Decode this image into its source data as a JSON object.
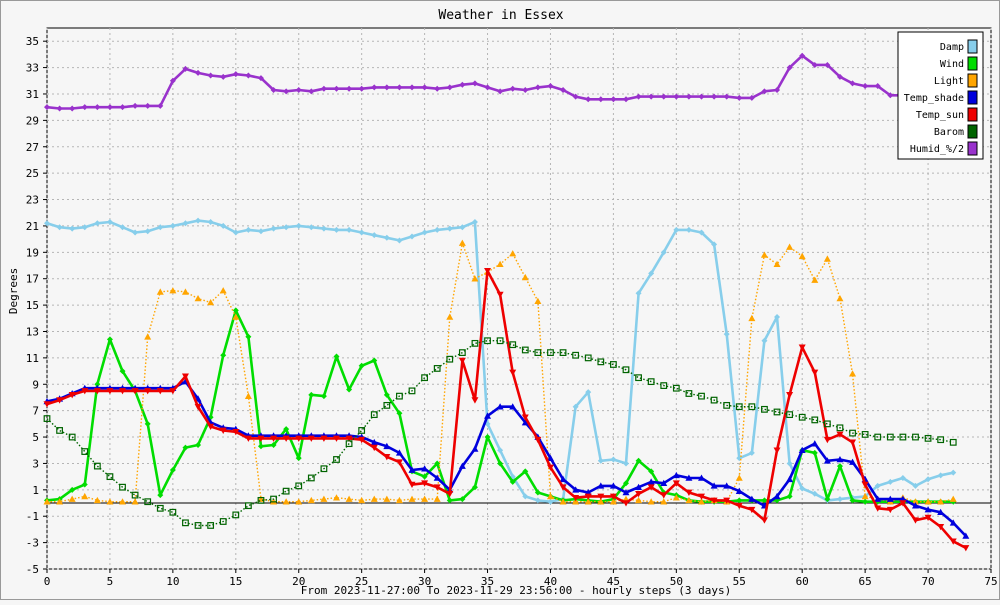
{
  "chart_data": {
    "type": "line",
    "title": "Weather in Essex",
    "ylabel": "Degrees",
    "xlabel": "From 2023-11-27:00 To 2023-11-29 23:56:00 - hourly steps (3 days)",
    "xlim": [
      0,
      75
    ],
    "ylim": [
      -5,
      36
    ],
    "xticks": [
      0,
      5,
      10,
      15,
      20,
      25,
      30,
      35,
      40,
      45,
      50,
      55,
      60,
      65,
      70,
      75
    ],
    "yticks": [
      -5,
      -3,
      -1,
      1,
      3,
      5,
      7,
      9,
      11,
      13,
      15,
      17,
      19,
      21,
      23,
      25,
      27,
      29,
      31,
      33,
      35
    ],
    "grid": true,
    "legend_position": "top-right",
    "series": [
      {
        "name": "Damp",
        "color": "#87ceeb",
        "style": "solid",
        "marker": "diamond",
        "values": [
          21.2,
          20.9,
          20.8,
          20.9,
          21.2,
          21.3,
          20.9,
          20.5,
          20.6,
          20.9,
          21.0,
          21.2,
          21.4,
          21.3,
          21.0,
          20.5,
          20.7,
          20.6,
          20.8,
          20.9,
          21.0,
          20.9,
          20.8,
          20.7,
          20.7,
          20.5,
          20.3,
          20.1,
          19.9,
          20.2,
          20.5,
          20.7,
          20.8,
          20.9,
          21.3,
          6.0,
          4.0,
          2.0,
          0.5,
          0.2,
          0.1,
          0.3,
          7.3,
          8.4,
          3.2,
          3.3,
          3.0,
          15.9,
          17.4,
          19.0,
          20.7,
          20.7,
          20.5,
          19.6,
          12.8,
          3.4,
          3.8,
          12.3,
          14.1,
          3.0,
          1.1,
          0.7,
          0.2,
          0.3,
          0.4,
          0.5,
          1.3,
          1.6,
          1.9,
          1.3,
          1.8,
          2.1,
          2.3
        ]
      },
      {
        "name": "Wind",
        "color": "#00dd00",
        "style": "solid",
        "marker": "diamond",
        "values": [
          0.2,
          0.3,
          1.0,
          1.4,
          9.0,
          12.4,
          10.0,
          8.5,
          6.0,
          0.6,
          2.5,
          4.2,
          4.4,
          6.5,
          11.2,
          14.6,
          12.6,
          4.3,
          4.4,
          5.6,
          3.4,
          8.2,
          8.1,
          11.1,
          8.6,
          10.4,
          10.8,
          8.2,
          6.8,
          2.4,
          2.0,
          3.0,
          0.2,
          0.3,
          1.2,
          5.0,
          3.0,
          1.6,
          2.4,
          0.8,
          0.5,
          0.2,
          0.3,
          0.2,
          0.1,
          0.3,
          1.5,
          3.2,
          2.4,
          0.8,
          0.6,
          0.2,
          0.1,
          0.1,
          0.1,
          0.2,
          0.2,
          0.2,
          0.2,
          0.5,
          4.0,
          3.8,
          0.3,
          2.8,
          0.2,
          0.1,
          0.1,
          0.1,
          0.1,
          0.1,
          0.1,
          0.1,
          0.1
        ]
      },
      {
        "name": "Light",
        "color": "#ffa500",
        "style": "dotted",
        "marker": "triangle-up",
        "values": [
          0.1,
          0.1,
          0.3,
          0.5,
          0.2,
          0.1,
          0.1,
          0.1,
          12.6,
          16.0,
          16.1,
          16.0,
          15.5,
          15.2,
          16.1,
          14.1,
          8.1,
          0.3,
          0.1,
          0.1,
          0.1,
          0.2,
          0.3,
          0.4,
          0.3,
          0.2,
          0.3,
          0.3,
          0.2,
          0.3,
          0.3,
          0.3,
          14.1,
          19.7,
          17.0,
          17.5,
          18.1,
          18.9,
          17.1,
          15.3,
          0.5,
          0.1,
          0.1,
          0.1,
          0.1,
          0.1,
          0.3,
          0.2,
          0.1,
          0.1,
          0.4,
          0.2,
          0.1,
          0.2,
          0.1,
          1.9,
          14.0,
          18.8,
          18.1,
          19.4,
          18.7,
          16.9,
          18.5,
          15.5,
          9.8,
          0.5,
          0.3,
          0.1,
          0.4,
          0.1,
          0.1,
          0.1,
          0.3
        ]
      },
      {
        "name": "Temp_shade",
        "color": "#0000dd",
        "style": "solid",
        "marker": "triangle-up",
        "values": [
          7.7,
          7.9,
          8.3,
          8.7,
          8.7,
          8.7,
          8.7,
          8.7,
          8.7,
          8.7,
          8.7,
          9.2,
          7.9,
          6.1,
          5.7,
          5.6,
          5.1,
          5.1,
          5.1,
          5.1,
          5.1,
          5.1,
          5.1,
          5.1,
          5.1,
          5.0,
          4.6,
          4.3,
          3.8,
          2.5,
          2.6,
          1.9,
          1.0,
          2.8,
          4.1,
          6.6,
          7.3,
          7.3,
          6.1,
          5.0,
          3.4,
          1.8,
          1.0,
          0.8,
          1.3,
          1.3,
          0.8,
          1.2,
          1.6,
          1.5,
          2.1,
          1.9,
          1.9,
          1.3,
          1.3,
          0.9,
          0.3,
          -0.2,
          0.5,
          1.8,
          4.0,
          4.5,
          3.2,
          3.3,
          3.1,
          1.8,
          0.3,
          0.3,
          0.3,
          -0.2,
          -0.5,
          -0.7,
          -1.5,
          -2.5
        ]
      },
      {
        "name": "Temp_sun",
        "color": "#ee0000",
        "style": "solid",
        "marker": "triangle-down",
        "values": [
          7.5,
          7.8,
          8.2,
          8.5,
          8.5,
          8.5,
          8.5,
          8.5,
          8.5,
          8.5,
          8.5,
          9.6,
          7.3,
          5.8,
          5.5,
          5.4,
          4.9,
          4.9,
          4.9,
          4.9,
          4.9,
          4.9,
          4.9,
          4.9,
          4.9,
          4.8,
          4.2,
          3.5,
          3.1,
          1.4,
          1.5,
          1.2,
          0.7,
          10.8,
          7.8,
          17.6,
          15.8,
          9.9,
          6.5,
          4.8,
          2.7,
          1.2,
          0.4,
          0.5,
          0.5,
          0.5,
          0.0,
          0.7,
          1.2,
          0.6,
          1.5,
          0.8,
          0.5,
          0.2,
          0.2,
          -0.2,
          -0.5,
          -1.3,
          4.0,
          8.2,
          11.8,
          9.9,
          4.8,
          5.2,
          4.6,
          1.4,
          -0.4,
          -0.5,
          0.0,
          -1.3,
          -1.1,
          -1.8,
          -2.9,
          -3.4
        ]
      },
      {
        "name": "Barom",
        "color": "#006400",
        "style": "dotted",
        "marker": "square",
        "values": [
          6.4,
          5.5,
          5.0,
          3.9,
          2.8,
          2.0,
          1.2,
          0.6,
          0.1,
          -0.4,
          -0.7,
          -1.5,
          -1.7,
          -1.7,
          -1.4,
          -0.9,
          -0.2,
          0.2,
          0.3,
          0.9,
          1.3,
          1.9,
          2.6,
          3.3,
          4.5,
          5.5,
          6.7,
          7.4,
          8.1,
          8.5,
          9.5,
          10.2,
          10.9,
          11.4,
          12.1,
          12.3,
          12.3,
          12.0,
          11.6,
          11.4,
          11.4,
          11.4,
          11.2,
          11.0,
          10.7,
          10.5,
          10.1,
          9.5,
          9.2,
          8.9,
          8.7,
          8.3,
          8.1,
          7.8,
          7.4,
          7.3,
          7.3,
          7.1,
          6.9,
          6.7,
          6.5,
          6.3,
          6.0,
          5.7,
          5.3,
          5.2,
          5.0,
          5.0,
          5.0,
          5.0,
          4.9,
          4.8,
          4.6
        ]
      },
      {
        "name": "Humid_%/2",
        "color": "#9932cc",
        "style": "solid",
        "marker": "diamond",
        "values": [
          30.0,
          29.9,
          29.9,
          30.0,
          30.0,
          30.0,
          30.0,
          30.1,
          30.1,
          30.1,
          32.0,
          32.9,
          32.6,
          32.4,
          32.3,
          32.5,
          32.4,
          32.2,
          31.3,
          31.2,
          31.3,
          31.2,
          31.4,
          31.4,
          31.4,
          31.4,
          31.5,
          31.5,
          31.5,
          31.5,
          31.5,
          31.4,
          31.5,
          31.7,
          31.8,
          31.5,
          31.2,
          31.4,
          31.3,
          31.5,
          31.6,
          31.3,
          30.8,
          30.6,
          30.6,
          30.6,
          30.6,
          30.8,
          30.8,
          30.8,
          30.8,
          30.8,
          30.8,
          30.8,
          30.8,
          30.7,
          30.7,
          31.2,
          31.3,
          33.0,
          33.9,
          33.2,
          33.2,
          32.3,
          31.8,
          31.6,
          31.6,
          30.9,
          30.9
        ]
      }
    ]
  }
}
